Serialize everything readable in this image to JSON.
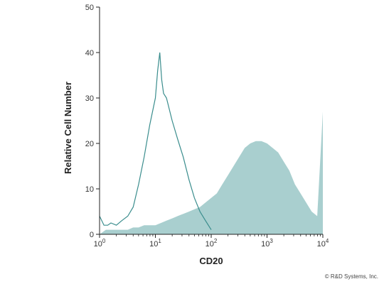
{
  "chart_data": {
    "type": "area",
    "xlabel": "CD20",
    "ylabel": "Relative Cell Number",
    "x_scale": "log",
    "xlim": [
      1,
      10000
    ],
    "ylim": [
      0,
      50
    ],
    "x_ticks": [
      {
        "value": 1,
        "base": "10",
        "exp": "0"
      },
      {
        "value": 10,
        "base": "10",
        "exp": "1"
      },
      {
        "value": 100,
        "base": "10",
        "exp": "2"
      },
      {
        "value": 1000,
        "base": "10",
        "exp": "3"
      },
      {
        "value": 10000,
        "base": "10",
        "exp": "4"
      }
    ],
    "y_ticks": [
      "0",
      "10",
      "20",
      "30",
      "40",
      "50"
    ],
    "series": [
      {
        "style": "filled",
        "color": "#a9cfcf",
        "x": [
          1,
          1.3,
          1.6,
          2,
          2.5,
          3.2,
          4,
          5,
          6.3,
          7.9,
          10,
          12.6,
          15.8,
          20,
          25,
          31.6,
          40,
          50,
          63,
          79,
          100,
          126,
          158,
          200,
          251,
          316,
          398,
          501,
          631,
          794,
          1000,
          1259,
          1585,
          1995,
          2512,
          3162,
          3981,
          5012,
          6310,
          7943,
          10000
        ],
        "values": [
          0,
          1,
          1,
          1,
          1,
          1,
          1.5,
          1.5,
          2,
          2,
          2,
          2.5,
          3,
          3.5,
          4,
          4.5,
          5,
          5.5,
          6,
          7,
          8,
          9,
          11,
          13,
          15,
          17,
          19,
          20,
          20.5,
          20.5,
          20,
          19,
          18,
          16,
          14,
          11,
          9,
          7,
          5,
          4,
          27
        ]
      },
      {
        "style": "outline",
        "color": "#3a8d8d",
        "x": [
          1,
          1.2,
          1.4,
          1.6,
          2,
          2.5,
          3.2,
          4,
          5,
          6.3,
          7.9,
          10,
          11,
          12,
          13,
          14,
          15.8,
          20,
          25,
          31.6,
          40,
          50,
          63,
          79,
          100
        ],
        "values": [
          4,
          2,
          2,
          2.5,
          2,
          3,
          4,
          6,
          11,
          17,
          24,
          30,
          36,
          40,
          34,
          31,
          30,
          25,
          21,
          17,
          12,
          8,
          5,
          3,
          1
        ]
      }
    ]
  },
  "footer": {
    "copyright": "© R&D Systems, Inc."
  }
}
